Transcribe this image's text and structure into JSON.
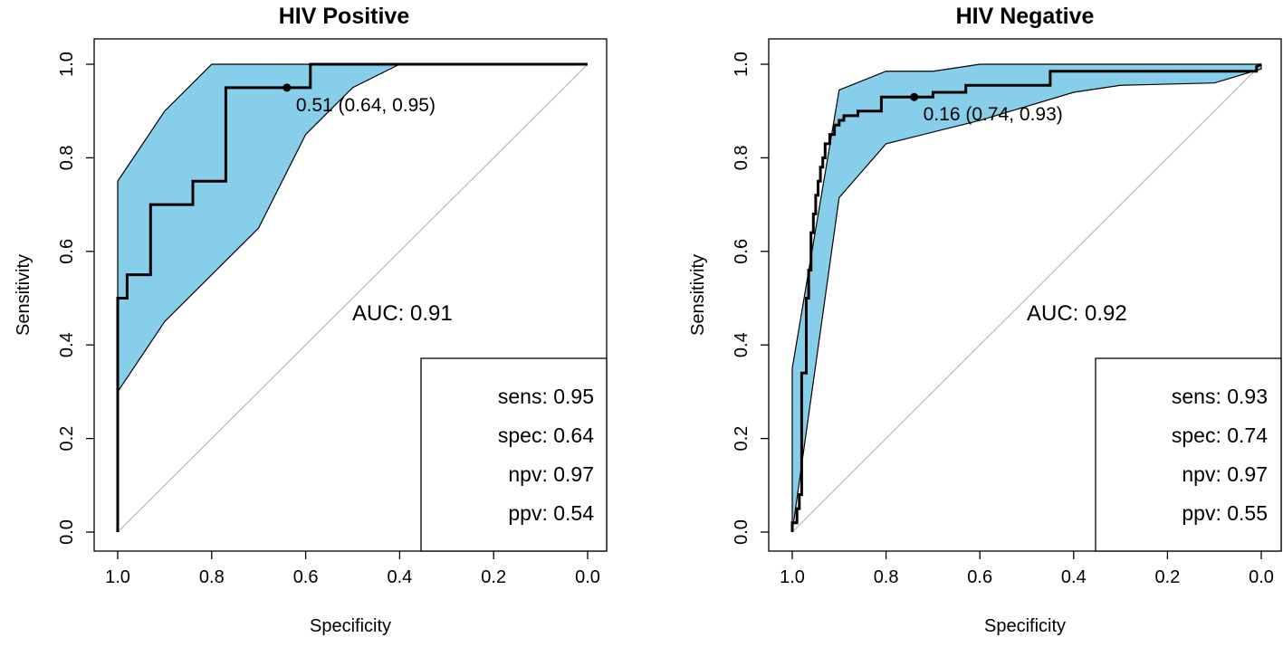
{
  "chart_data": [
    {
      "type": "line",
      "title": "HIV Positive",
      "xlabel": "Specificity",
      "ylabel": "Sensitivity",
      "xlim": [
        1.0,
        0.0
      ],
      "ylim": [
        0.0,
        1.0
      ],
      "xticks": [
        "1.0",
        "0.8",
        "0.6",
        "0.4",
        "0.2",
        "0.0"
      ],
      "yticks": [
        "0.0",
        "0.2",
        "0.4",
        "0.6",
        "0.8",
        "1.0"
      ],
      "xtick_values": [
        1.0,
        0.8,
        0.6,
        0.4,
        0.2,
        0.0
      ],
      "ytick_values": [
        0.0,
        0.2,
        0.4,
        0.6,
        0.8,
        1.0
      ],
      "roc_curve": {
        "specificity": [
          1.0,
          1.0,
          0.98,
          0.98,
          0.93,
          0.93,
          0.84,
          0.84,
          0.77,
          0.77,
          0.64,
          0.59,
          0.59,
          0.0
        ],
        "sensitivity": [
          0.0,
          0.5,
          0.5,
          0.55,
          0.55,
          0.7,
          0.7,
          0.75,
          0.75,
          0.95,
          0.95,
          0.95,
          1.0,
          1.0
        ]
      },
      "ci_upper": {
        "specificity": [
          1.0,
          0.9,
          0.8,
          0.7,
          0.6,
          0.5,
          0.4
        ],
        "sensitivity": [
          0.75,
          0.9,
          1.0,
          1.0,
          1.0,
          1.0,
          1.0
        ]
      },
      "ci_lower": {
        "specificity": [
          1.0,
          0.9,
          0.7,
          0.6,
          0.5,
          0.4
        ],
        "sensitivity": [
          0.3,
          0.45,
          0.65,
          0.85,
          0.95,
          1.0
        ]
      },
      "best_point": {
        "specificity": 0.64,
        "sensitivity": 0.95,
        "label": "0.51 (0.64, 0.95)"
      },
      "auc_text": "AUC: 0.91",
      "legend_entries": [
        "sens: 0.95",
        "spec: 0.64",
        "npv: 0.97",
        "ppv: 0.54"
      ],
      "legend_position": "bottom-right",
      "ci_fill_color": "#87ceeb",
      "diagonal_color": "#bebebe"
    },
    {
      "type": "line",
      "title": "HIV Negative",
      "xlabel": "Specificity",
      "ylabel": "Sensitivity",
      "xlim": [
        1.0,
        0.0
      ],
      "ylim": [
        0.0,
        1.0
      ],
      "xticks": [
        "1.0",
        "0.8",
        "0.6",
        "0.4",
        "0.2",
        "0.0"
      ],
      "yticks": [
        "0.0",
        "0.2",
        "0.4",
        "0.6",
        "0.8",
        "1.0"
      ],
      "xtick_values": [
        1.0,
        0.8,
        0.6,
        0.4,
        0.2,
        0.0
      ],
      "ytick_values": [
        0.0,
        0.2,
        0.4,
        0.6,
        0.8,
        1.0
      ],
      "roc_curve": {
        "specificity": [
          1.0,
          1.0,
          0.99,
          0.99,
          0.985,
          0.985,
          0.98,
          0.98,
          0.97,
          0.97,
          0.965,
          0.965,
          0.96,
          0.96,
          0.955,
          0.955,
          0.95,
          0.95,
          0.945,
          0.945,
          0.94,
          0.94,
          0.935,
          0.935,
          0.93,
          0.93,
          0.92,
          0.92,
          0.91,
          0.91,
          0.9,
          0.9,
          0.89,
          0.89,
          0.86,
          0.86,
          0.81,
          0.81,
          0.74,
          0.7,
          0.7,
          0.63,
          0.63,
          0.45,
          0.45,
          0.01,
          0.01,
          0.0
        ],
        "sensitivity": [
          0.0,
          0.02,
          0.02,
          0.05,
          0.05,
          0.08,
          0.08,
          0.34,
          0.34,
          0.5,
          0.5,
          0.56,
          0.56,
          0.64,
          0.64,
          0.68,
          0.68,
          0.72,
          0.72,
          0.75,
          0.75,
          0.78,
          0.78,
          0.8,
          0.8,
          0.83,
          0.83,
          0.85,
          0.85,
          0.87,
          0.87,
          0.88,
          0.88,
          0.89,
          0.89,
          0.9,
          0.9,
          0.93,
          0.93,
          0.93,
          0.94,
          0.94,
          0.955,
          0.955,
          0.985,
          0.985,
          0.995,
          1.0
        ]
      },
      "ci_upper": {
        "specificity": [
          1.0,
          0.9,
          0.8,
          0.7,
          0.6,
          0.4,
          0.2,
          0.0
        ],
        "sensitivity": [
          0.35,
          0.945,
          0.985,
          0.985,
          1.0,
          1.0,
          1.0,
          1.0
        ]
      },
      "ci_lower": {
        "specificity": [
          1.0,
          0.9,
          0.8,
          0.6,
          0.4,
          0.3,
          0.1,
          0.0
        ],
        "sensitivity": [
          0.0,
          0.715,
          0.83,
          0.88,
          0.94,
          0.955,
          0.96,
          0.99
        ]
      },
      "best_point": {
        "specificity": 0.74,
        "sensitivity": 0.93,
        "label": "0.16 (0.74, 0.93)"
      },
      "auc_text": "AUC: 0.92",
      "legend_entries": [
        "sens: 0.93",
        "spec: 0.74",
        "npv: 0.97",
        "ppv: 0.55"
      ],
      "legend_position": "bottom-right",
      "ci_fill_color": "#87ceeb",
      "diagonal_color": "#bebebe"
    }
  ]
}
